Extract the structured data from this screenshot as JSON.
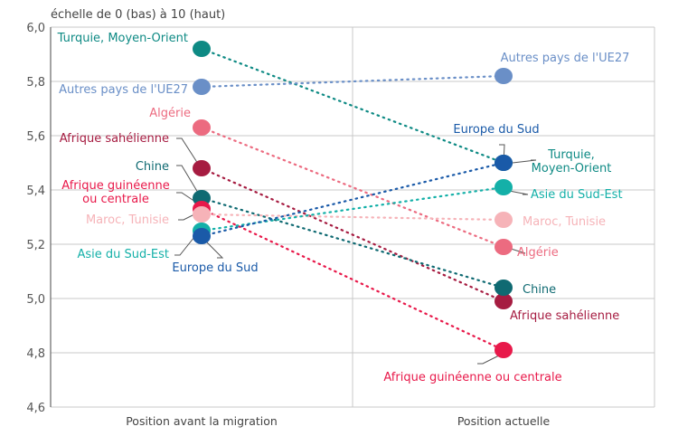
{
  "chart_data": {
    "type": "slope",
    "subtitle": "échelle de 0 (bas) à 10 (haut)",
    "categories": [
      "Position avant la migration",
      "Position actuelle"
    ],
    "ylim": [
      4.6,
      6.0
    ],
    "yticks": [
      "4,6",
      "4,8",
      "5,0",
      "5,2",
      "5,4",
      "5,6",
      "5,8",
      "6,0"
    ],
    "ytick_values": [
      4.6,
      4.8,
      5.0,
      5.2,
      5.4,
      5.6,
      5.8,
      6.0
    ],
    "grid": true,
    "series": [
      {
        "name": "Turquie, Moyen-Orient",
        "name_right": [
          "Turquie,",
          "Moyen-Orient"
        ],
        "values": [
          5.92,
          5.5
        ],
        "color": "#0e8a84"
      },
      {
        "name": "Autres pays de l'UE27",
        "values": [
          5.78,
          5.82
        ],
        "color": "#6a8fc7"
      },
      {
        "name": "Algérie",
        "values": [
          5.63,
          5.19
        ],
        "color": "#ec6b80"
      },
      {
        "name": "Afrique sahélienne",
        "values": [
          5.48,
          4.99
        ],
        "color": "#a61c41"
      },
      {
        "name": "Chine",
        "values": [
          5.37,
          5.04
        ],
        "color": "#0f6a72"
      },
      {
        "name": "Afrique guinéenne ou centrale",
        "name_left": [
          "Afrique guinéenne",
          "ou centrale"
        ],
        "values": [
          5.33,
          4.81
        ],
        "color": "#e8194a"
      },
      {
        "name": "Maroc, Tunisie",
        "values": [
          5.31,
          5.29
        ],
        "color": "#f6b3b8"
      },
      {
        "name": "Asie du Sud-Est",
        "values": [
          5.25,
          5.41
        ],
        "color": "#14b0a8"
      },
      {
        "name": "Europe du Sud",
        "values": [
          5.23,
          5.5
        ],
        "color": "#1a5aa8"
      }
    ]
  }
}
